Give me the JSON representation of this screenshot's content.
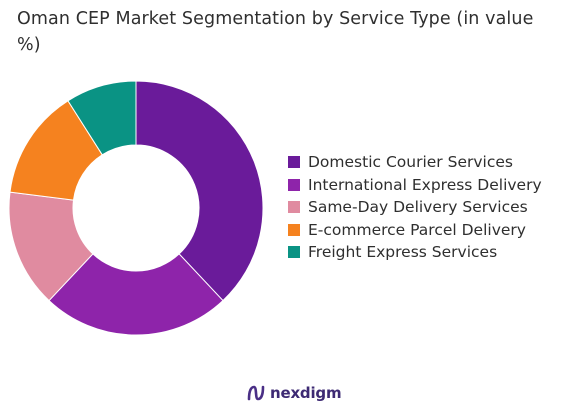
{
  "chart_data": {
    "type": "pie",
    "title": "Oman CEP Market Segmentation by Service Type (in value %)",
    "categories": [
      "Domestic Courier Services",
      "International Express Delivery",
      "Same-Day Delivery Services",
      "E-commerce Parcel Delivery",
      "Freight Express Services"
    ],
    "values": [
      38,
      24,
      15,
      14,
      9
    ],
    "colors": [
      "#6a1b9a",
      "#8e24aa",
      "#e08ba0",
      "#f5821f",
      "#0a9384"
    ],
    "donut": true,
    "legend_placement": "right"
  },
  "branding": {
    "logo_text": "nexdigm",
    "logo_color": "#3d2a73"
  }
}
